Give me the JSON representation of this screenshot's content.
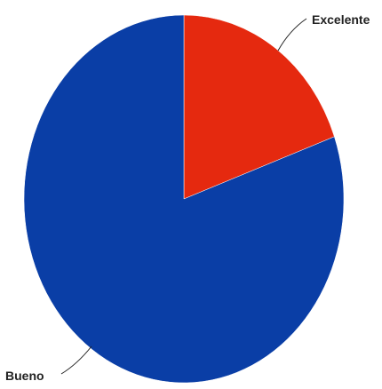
{
  "chart_data": {
    "type": "pie",
    "title": "",
    "slices": [
      {
        "label": "Excelente",
        "value": 19.5,
        "color": "#e5290f"
      },
      {
        "label": "Bueno",
        "value": 80.5,
        "color": "#0a3ea6"
      }
    ],
    "legend": "none"
  }
}
